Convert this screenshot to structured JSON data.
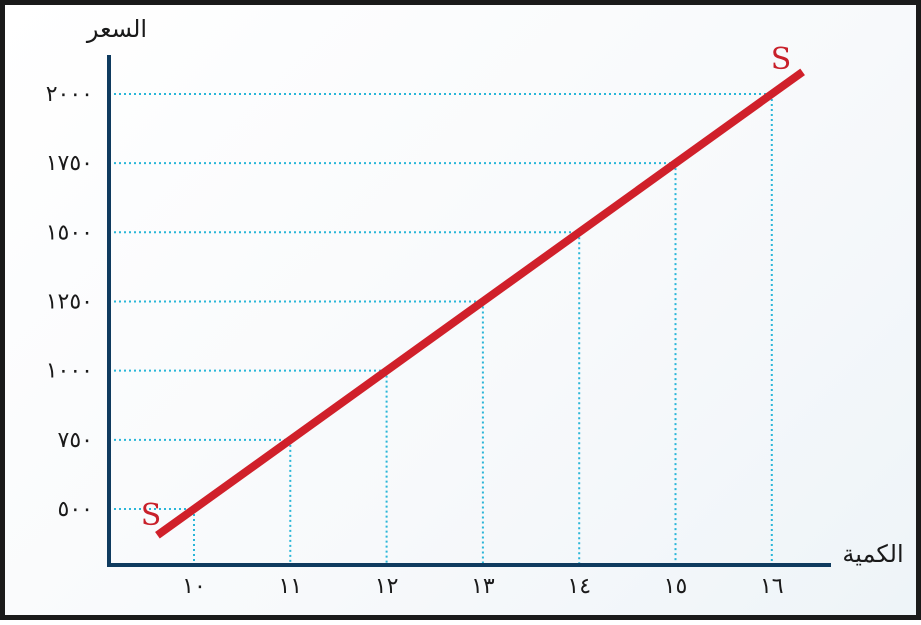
{
  "chart_data": {
    "type": "line",
    "title": "",
    "xlabel": "الكمية",
    "ylabel": "السعر",
    "x_ticks": [
      "١٠",
      "١١",
      "١٢",
      "١٣",
      "١٤",
      "١٥",
      "١٦"
    ],
    "y_ticks": [
      "٥٠٠",
      "٧٥٠",
      "١٠٠٠",
      "١٢٥٠",
      "١٥٠٠",
      "١٧٥٠",
      "٢٠٠٠"
    ],
    "x": [
      10,
      11,
      12,
      13,
      14,
      15,
      16
    ],
    "series": [
      {
        "name": "S",
        "values": [
          500,
          750,
          1000,
          1250,
          1500,
          1750,
          2000
        ]
      }
    ],
    "series_end_labels": [
      "S",
      "S"
    ],
    "xlim": [
      9,
      17
    ],
    "ylim": [
      0,
      2150
    ],
    "grid": "dotted guides from each point to both axes",
    "colors": {
      "axis": "#0f3b5f",
      "series": "#d0202a",
      "guides": "#29b6d8",
      "text": "#1a1a1a"
    }
  }
}
